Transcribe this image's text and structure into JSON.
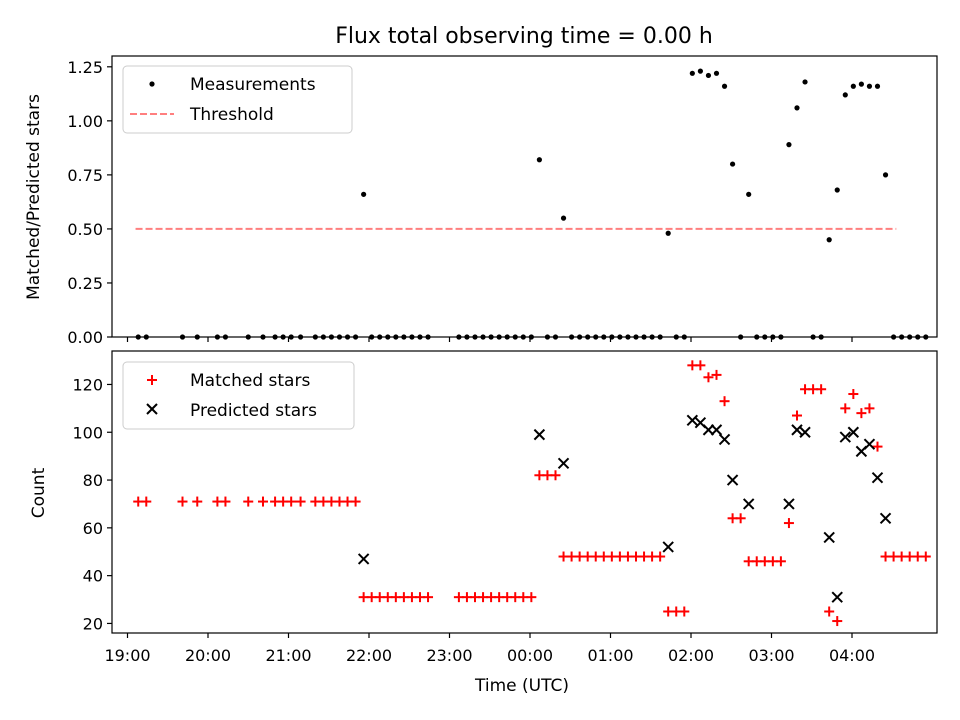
{
  "chart_data": [
    {
      "type": "scatter",
      "title": "Flux total observing time = 0.00 h",
      "xlabel": "",
      "ylabel": "Matched/Predicted stars",
      "x_ticklabels": [
        "19:00",
        "20:00",
        "21:00",
        "22:00",
        "23:00",
        "00:00",
        "01:00",
        "02:00",
        "03:00",
        "04:00"
      ],
      "ylim": [
        0,
        1.3
      ],
      "yticks": [
        0.0,
        0.25,
        0.5,
        0.75,
        1.0,
        1.25
      ],
      "ytick_labels": [
        "0.00",
        "0.25",
        "0.50",
        "0.75",
        "1.00",
        "1.25"
      ],
      "legend_position": "top-left",
      "grid": false,
      "series": [
        {
          "name": "Measurements",
          "marker": "dot",
          "color": "#000000",
          "points": [
            [
              "19:08",
              0
            ],
            [
              "19:14",
              0
            ],
            [
              "19:41",
              0
            ],
            [
              "19:52",
              0
            ],
            [
              "20:07",
              0
            ],
            [
              "20:13",
              0
            ],
            [
              "20:30",
              0
            ],
            [
              "20:41",
              0
            ],
            [
              "20:50",
              0
            ],
            [
              "20:56",
              0
            ],
            [
              "21:02",
              0
            ],
            [
              "21:09",
              0
            ],
            [
              "21:20",
              0
            ],
            [
              "21:26",
              0
            ],
            [
              "21:32",
              0
            ],
            [
              "21:38",
              0
            ],
            [
              "21:44",
              0
            ],
            [
              "21:50",
              0
            ],
            [
              "21:56",
              0.66
            ],
            [
              "22:02",
              0
            ],
            [
              "22:08",
              0
            ],
            [
              "22:14",
              0
            ],
            [
              "22:20",
              0
            ],
            [
              "22:26",
              0
            ],
            [
              "22:32",
              0
            ],
            [
              "22:38",
              0
            ],
            [
              "22:44",
              0
            ],
            [
              "23:07",
              0
            ],
            [
              "23:13",
              0
            ],
            [
              "23:19",
              0
            ],
            [
              "23:25",
              0
            ],
            [
              "23:31",
              0
            ],
            [
              "23:37",
              0
            ],
            [
              "23:43",
              0
            ],
            [
              "23:49",
              0
            ],
            [
              "23:55",
              0
            ],
            [
              "00:01",
              0
            ],
            [
              "00:07",
              0.82
            ],
            [
              "00:13",
              0
            ],
            [
              "00:19",
              0
            ],
            [
              "00:25",
              0.55
            ],
            [
              "00:31",
              0
            ],
            [
              "00:37",
              0
            ],
            [
              "00:43",
              0
            ],
            [
              "00:49",
              0
            ],
            [
              "00:55",
              0
            ],
            [
              "01:01",
              0
            ],
            [
              "01:07",
              0
            ],
            [
              "01:13",
              0
            ],
            [
              "01:19",
              0
            ],
            [
              "01:25",
              0
            ],
            [
              "01:31",
              0
            ],
            [
              "01:37",
              0
            ],
            [
              "01:43",
              0.48
            ],
            [
              "01:49",
              0
            ],
            [
              "01:55",
              0
            ],
            [
              "02:01",
              1.22
            ],
            [
              "02:07",
              1.23
            ],
            [
              "02:13",
              1.21
            ],
            [
              "02:19",
              1.22
            ],
            [
              "02:25",
              1.16
            ],
            [
              "02:31",
              0.8
            ],
            [
              "02:37",
              0
            ],
            [
              "02:43",
              0.66
            ],
            [
              "02:49",
              0
            ],
            [
              "02:55",
              0
            ],
            [
              "03:01",
              0
            ],
            [
              "03:07",
              0
            ],
            [
              "03:13",
              0.89
            ],
            [
              "03:19",
              1.06
            ],
            [
              "03:25",
              1.18
            ],
            [
              "03:31",
              0
            ],
            [
              "03:37",
              0
            ],
            [
              "03:43",
              0.45
            ],
            [
              "03:49",
              0.68
            ],
            [
              "03:55",
              1.12
            ],
            [
              "04:01",
              1.16
            ],
            [
              "04:07",
              1.17
            ],
            [
              "04:13",
              1.16
            ],
            [
              "04:19",
              1.16
            ],
            [
              "04:25",
              0.75
            ],
            [
              "04:31",
              0
            ],
            [
              "04:37",
              0
            ],
            [
              "04:43",
              0
            ],
            [
              "04:49",
              0
            ],
            [
              "04:55",
              0
            ]
          ]
        },
        {
          "name": "Threshold",
          "marker": "dashed-line",
          "color": "#ff7f7f",
          "points": [
            [
              "19:06",
              0.5
            ],
            [
              "04:33",
              0.5
            ]
          ]
        }
      ]
    },
    {
      "type": "scatter",
      "title": "",
      "xlabel": "Time (UTC)",
      "ylabel": "Count",
      "x_ticklabels": [
        "19:00",
        "20:00",
        "21:00",
        "22:00",
        "23:00",
        "00:00",
        "01:00",
        "02:00",
        "03:00",
        "04:00"
      ],
      "ylim": [
        16,
        134
      ],
      "yticks": [
        20,
        40,
        60,
        80,
        100,
        120
      ],
      "ytick_labels": [
        "20",
        "40",
        "60",
        "80",
        "100",
        "120"
      ],
      "legend_position": "top-left",
      "grid": false,
      "series": [
        {
          "name": "Matched stars",
          "marker": "plus",
          "color": "#ff0000",
          "points": [
            [
              "19:08",
              71
            ],
            [
              "19:14",
              71
            ],
            [
              "19:41",
              71
            ],
            [
              "19:52",
              71
            ],
            [
              "20:07",
              71
            ],
            [
              "20:13",
              71
            ],
            [
              "20:30",
              71
            ],
            [
              "20:41",
              71
            ],
            [
              "20:50",
              71
            ],
            [
              "20:56",
              71
            ],
            [
              "21:02",
              71
            ],
            [
              "21:09",
              71
            ],
            [
              "21:20",
              71
            ],
            [
              "21:26",
              71
            ],
            [
              "21:32",
              71
            ],
            [
              "21:38",
              71
            ],
            [
              "21:44",
              71
            ],
            [
              "21:50",
              71
            ],
            [
              "21:56",
              31
            ],
            [
              "22:02",
              31
            ],
            [
              "22:08",
              31
            ],
            [
              "22:14",
              31
            ],
            [
              "22:20",
              31
            ],
            [
              "22:26",
              31
            ],
            [
              "22:32",
              31
            ],
            [
              "22:38",
              31
            ],
            [
              "22:44",
              31
            ],
            [
              "23:07",
              31
            ],
            [
              "23:13",
              31
            ],
            [
              "23:19",
              31
            ],
            [
              "23:25",
              31
            ],
            [
              "23:31",
              31
            ],
            [
              "23:37",
              31
            ],
            [
              "23:43",
              31
            ],
            [
              "23:49",
              31
            ],
            [
              "23:55",
              31
            ],
            [
              "00:01",
              31
            ],
            [
              "00:07",
              82
            ],
            [
              "00:13",
              82
            ],
            [
              "00:19",
              82
            ],
            [
              "00:25",
              48
            ],
            [
              "00:31",
              48
            ],
            [
              "00:37",
              48
            ],
            [
              "00:43",
              48
            ],
            [
              "00:49",
              48
            ],
            [
              "00:55",
              48
            ],
            [
              "01:01",
              48
            ],
            [
              "01:07",
              48
            ],
            [
              "01:13",
              48
            ],
            [
              "01:19",
              48
            ],
            [
              "01:25",
              48
            ],
            [
              "01:31",
              48
            ],
            [
              "01:37",
              48
            ],
            [
              "01:43",
              25
            ],
            [
              "01:49",
              25
            ],
            [
              "01:55",
              25
            ],
            [
              "02:01",
              128
            ],
            [
              "02:07",
              128
            ],
            [
              "02:13",
              123
            ],
            [
              "02:19",
              124
            ],
            [
              "02:25",
              113
            ],
            [
              "02:31",
              64
            ],
            [
              "02:37",
              64
            ],
            [
              "02:43",
              46
            ],
            [
              "02:49",
              46
            ],
            [
              "02:55",
              46
            ],
            [
              "03:01",
              46
            ],
            [
              "03:07",
              46
            ],
            [
              "03:13",
              62
            ],
            [
              "03:19",
              107
            ],
            [
              "03:25",
              118
            ],
            [
              "03:31",
              118
            ],
            [
              "03:37",
              118
            ],
            [
              "03:43",
              25
            ],
            [
              "03:49",
              21
            ],
            [
              "03:55",
              110
            ],
            [
              "04:01",
              116
            ],
            [
              "04:07",
              108
            ],
            [
              "04:13",
              110
            ],
            [
              "04:19",
              94
            ],
            [
              "04:25",
              48
            ],
            [
              "04:31",
              48
            ],
            [
              "04:37",
              48
            ],
            [
              "04:43",
              48
            ],
            [
              "04:49",
              48
            ],
            [
              "04:55",
              48
            ]
          ]
        },
        {
          "name": "Predicted stars",
          "marker": "x",
          "color": "#000000",
          "points": [
            [
              "21:56",
              47
            ],
            [
              "00:07",
              99
            ],
            [
              "00:25",
              87
            ],
            [
              "01:43",
              52
            ],
            [
              "02:01",
              105
            ],
            [
              "02:07",
              104
            ],
            [
              "02:13",
              101
            ],
            [
              "02:19",
              101
            ],
            [
              "02:25",
              97
            ],
            [
              "02:31",
              80
            ],
            [
              "02:43",
              70
            ],
            [
              "03:13",
              70
            ],
            [
              "03:19",
              101
            ],
            [
              "03:25",
              100
            ],
            [
              "03:43",
              56
            ],
            [
              "03:49",
              31
            ],
            [
              "03:55",
              98
            ],
            [
              "04:01",
              100
            ],
            [
              "04:07",
              92
            ],
            [
              "04:13",
              95
            ],
            [
              "04:19",
              81
            ],
            [
              "04:25",
              64
            ]
          ]
        }
      ]
    }
  ]
}
